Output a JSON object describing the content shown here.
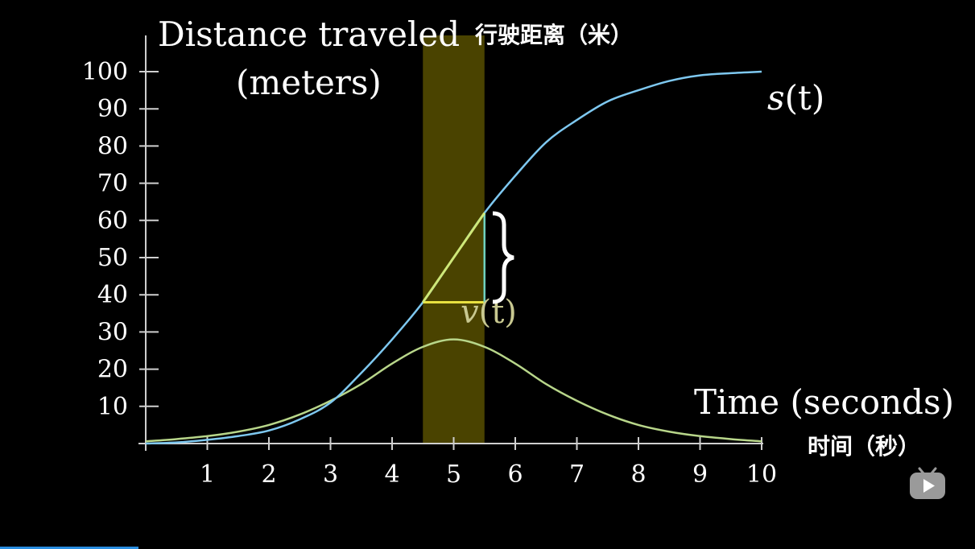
{
  "colors": {
    "background": "#000000",
    "axis": "#cfcfcf",
    "text": "#ffffff",
    "s_curve": "#7ec8f0",
    "v_curve": "#b8d68a",
    "highlight": "#4a4300",
    "tangent": "#cfe878",
    "dt_line": "#e8e040",
    "rise_line": "#6fd0c0",
    "v_label": "#c8c890",
    "progress": "#2a8ee0"
  },
  "chart_data": {
    "type": "line",
    "title": "Distance traveled 行驶距离（米）",
    "ylabel_line1": "Distance traveled",
    "ylabel_cn": "行驶距离（米）",
    "ylabel_line2": "(meters)",
    "xlabel": "Time (seconds)",
    "xlabel_cn": "时间（秒）",
    "xlim": [
      0,
      10
    ],
    "ylim": [
      0,
      100
    ],
    "x_ticks": [
      "1",
      "2",
      "3",
      "4",
      "5",
      "6",
      "7",
      "8",
      "9",
      "10"
    ],
    "y_ticks": [
      "10",
      "20",
      "30",
      "40",
      "50",
      "60",
      "70",
      "80",
      "90",
      "100"
    ],
    "series": [
      {
        "name": "s(t)",
        "label_main": "s",
        "label_arg": "(t)",
        "x": [
          0,
          0.5,
          1,
          1.5,
          2,
          2.5,
          3,
          3.5,
          4,
          4.5,
          5,
          5.5,
          6,
          6.5,
          7,
          7.5,
          8,
          8.5,
          9,
          9.5,
          10
        ],
        "y": [
          0,
          0.3,
          1,
          2,
          3.5,
          6.5,
          11,
          19,
          28,
          38,
          50,
          62,
          72,
          81,
          87,
          92,
          95,
          97.5,
          99,
          99.6,
          100
        ]
      },
      {
        "name": "v(t)",
        "label_main": "v",
        "label_arg": "(t)",
        "x": [
          0,
          0.5,
          1,
          1.5,
          2,
          2.5,
          3,
          3.5,
          4,
          4.5,
          5,
          5.5,
          6,
          6.5,
          7,
          7.5,
          8,
          8.5,
          9,
          9.5,
          10
        ],
        "y": [
          0.6,
          1.2,
          2,
          3.2,
          5,
          7.8,
          11.5,
          16,
          21.5,
          26,
          28,
          26,
          21.5,
          16,
          11.5,
          7.8,
          5,
          3.2,
          2,
          1.2,
          0.6
        ]
      }
    ],
    "highlight_interval": [
      4.5,
      5.5
    ],
    "secant": {
      "x0": 4.5,
      "y0": 38,
      "x1": 5.5,
      "y1": 62
    },
    "grid": false,
    "legend": "none"
  }
}
